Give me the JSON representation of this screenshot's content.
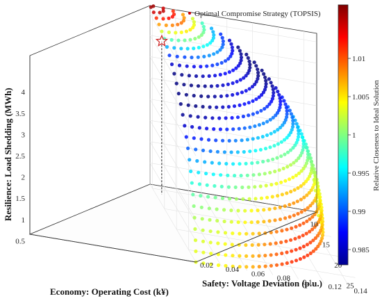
{
  "chart_data": {
    "type": "scatter",
    "subtype": "scatter3d",
    "title": "",
    "legend": {
      "position": "top",
      "entries": [
        {
          "label": "Optimal Compromise Strategy (TOPSIS)",
          "marker": "star",
          "color": "#cc0000"
        }
      ]
    },
    "axes": {
      "x": {
        "label": "Economy: Operating Cost (k¥)",
        "range": [
          9,
          28
        ],
        "ticks": [
          10,
          15,
          20,
          25
        ]
      },
      "y": {
        "label": "Safety: Voltage Deviation (p.u.)",
        "range": [
          0.02,
          0.15
        ],
        "ticks": [
          0.02,
          0.04,
          0.06,
          0.08,
          0.1,
          0.12,
          0.14
        ],
        "tick_labels": [
          "0.02",
          "0.04",
          "0.06",
          "0.08",
          "0.1",
          "0.12",
          "0.14"
        ]
      },
      "z": {
        "label": "Resilience: Load Shedding (MWh)",
        "range": [
          0,
          4.2
        ],
        "ticks": [
          0.5,
          1,
          1.5,
          2,
          2.5,
          3,
          3.5,
          4
        ],
        "tick_labels": [
          "0.5",
          "1",
          "1.5",
          "2",
          "2.5",
          "3",
          "3.5",
          "4"
        ]
      }
    },
    "surface": {
      "description": "Pareto front: quarter-ellipsoid of solution points",
      "x_at_apex": 9,
      "y_at_apex": 0.02,
      "z_apex": 4.2,
      "x_max": 28,
      "y_max": 0.15
    },
    "optimal_point": {
      "x": 11.2,
      "y": 0.025,
      "z": 3.6
    },
    "colorbar": {
      "label": "Relative Closeness to Ideal Solution",
      "range": [
        0.983,
        1.017
      ],
      "ticks": [
        0.985,
        0.99,
        0.995,
        1,
        1.005,
        1.01
      ],
      "tick_labels": [
        "0.985",
        "0.99",
        "0.995",
        "1",
        "1.005",
        "1.01"
      ],
      "colormap": "jet"
    },
    "grid": true
  }
}
